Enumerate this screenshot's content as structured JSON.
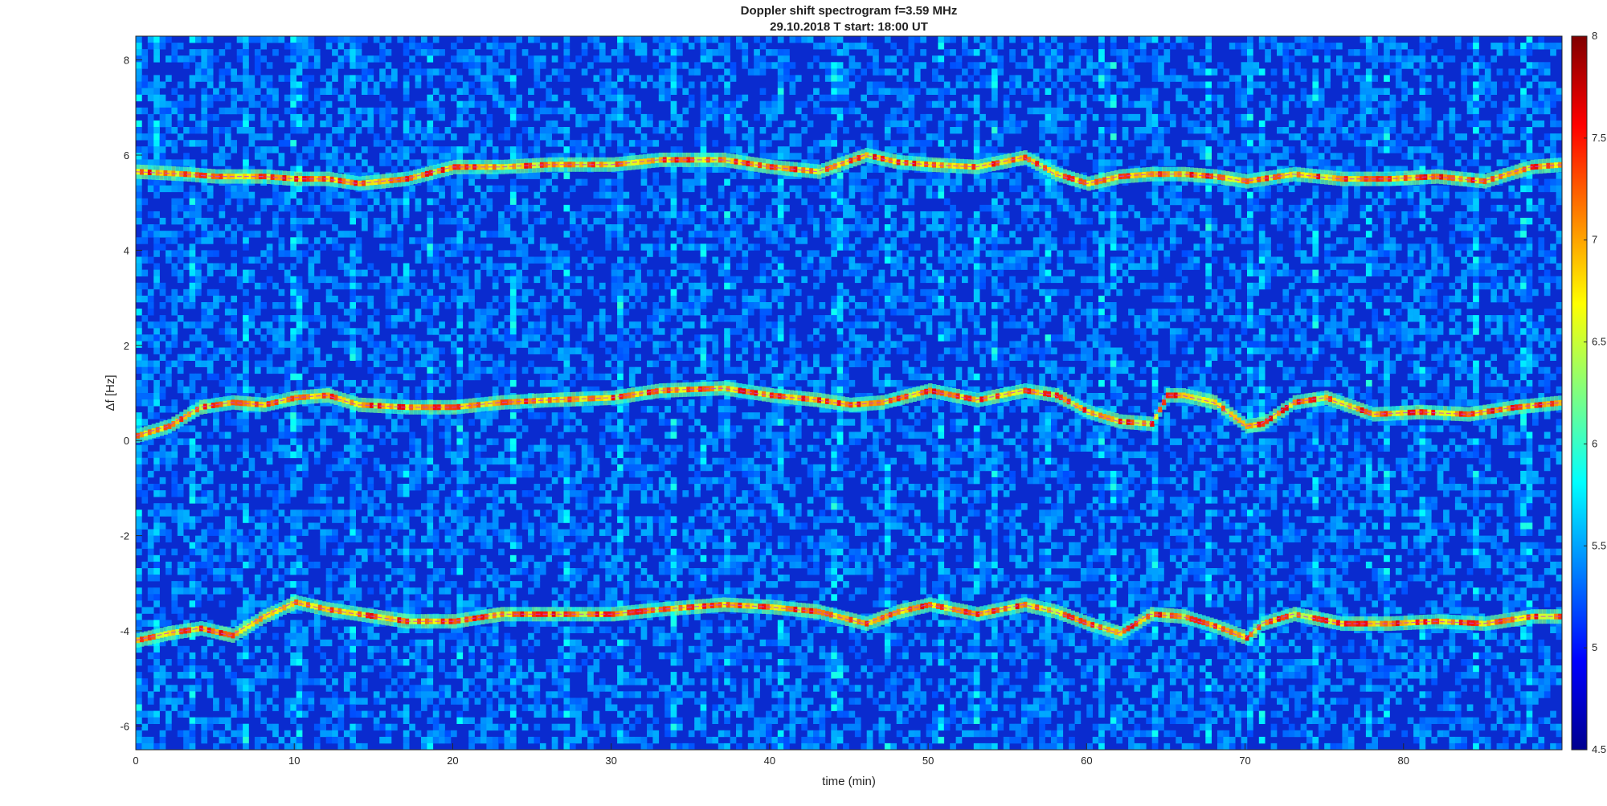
{
  "chart_data": {
    "type": "heatmap",
    "title": "Doppler shift spectrogram f=3.59 MHz",
    "subtitle": "29.10.2018   T start: 18:00 UT",
    "xlabel": "time (min)",
    "ylabel": "Δf [Hz]",
    "xlim": [
      0,
      90
    ],
    "ylim": [
      -6.5,
      8.5
    ],
    "xticks": [
      0,
      10,
      20,
      30,
      40,
      50,
      60,
      70,
      80
    ],
    "yticks": [
      -6,
      -4,
      -2,
      0,
      2,
      4,
      6,
      8
    ],
    "colorbar": {
      "colormap": "jet",
      "range": [
        4.5,
        8
      ],
      "ticks": [
        4.5,
        5,
        5.5,
        6,
        6.5,
        7,
        7.5,
        8
      ]
    },
    "grid": false,
    "series": [
      {
        "x": [
          0,
          3,
          5,
          8,
          10,
          12,
          14,
          17,
          20,
          23,
          26,
          30,
          33,
          37,
          40,
          43,
          46,
          48,
          50,
          53,
          56,
          58,
          60,
          62,
          64,
          66,
          68,
          70,
          73,
          76,
          79,
          82,
          85,
          88,
          90
        ],
        "y": [
          5.65,
          5.6,
          5.55,
          5.55,
          5.5,
          5.5,
          5.4,
          5.5,
          5.75,
          5.75,
          5.8,
          5.8,
          5.9,
          5.9,
          5.75,
          5.65,
          6.0,
          5.85,
          5.8,
          5.75,
          5.95,
          5.6,
          5.4,
          5.55,
          5.6,
          5.6,
          5.55,
          5.45,
          5.6,
          5.5,
          5.5,
          5.55,
          5.45,
          5.75,
          5.8
        ]
      },
      {
        "x": [
          0,
          2,
          4,
          6,
          8,
          10,
          12,
          14,
          17,
          20,
          23,
          26,
          30,
          33,
          37,
          40,
          43,
          45,
          47,
          50,
          53,
          56,
          58,
          60,
          62,
          64,
          65,
          66,
          68,
          70,
          71,
          73,
          75,
          78,
          81,
          84,
          87,
          90
        ],
        "y": [
          0.1,
          0.3,
          0.7,
          0.8,
          0.75,
          0.9,
          0.95,
          0.75,
          0.7,
          0.7,
          0.8,
          0.85,
          0.9,
          1.05,
          1.1,
          0.95,
          0.85,
          0.75,
          0.8,
          1.05,
          0.85,
          1.05,
          0.95,
          0.6,
          0.4,
          0.35,
          0.95,
          0.95,
          0.8,
          0.3,
          0.35,
          0.8,
          0.9,
          0.55,
          0.6,
          0.55,
          0.7,
          0.8
        ]
      },
      {
        "x": [
          0,
          2,
          4,
          6,
          8,
          10,
          12,
          14,
          17,
          20,
          23,
          26,
          30,
          33,
          37,
          40,
          43,
          46,
          48,
          50,
          53,
          56,
          58,
          60,
          62,
          64,
          66,
          68,
          70,
          71,
          73,
          76,
          79,
          82,
          85,
          88,
          90
        ],
        "y": [
          -4.2,
          -4.05,
          -3.95,
          -4.1,
          -3.7,
          -3.4,
          -3.55,
          -3.65,
          -3.8,
          -3.8,
          -3.65,
          -3.65,
          -3.65,
          -3.55,
          -3.45,
          -3.5,
          -3.6,
          -3.85,
          -3.6,
          -3.45,
          -3.65,
          -3.45,
          -3.6,
          -3.85,
          -4.05,
          -3.65,
          -3.7,
          -3.9,
          -4.15,
          -3.85,
          -3.65,
          -3.85,
          -3.85,
          -3.8,
          -3.85,
          -3.7,
          -3.7
        ]
      }
    ]
  }
}
